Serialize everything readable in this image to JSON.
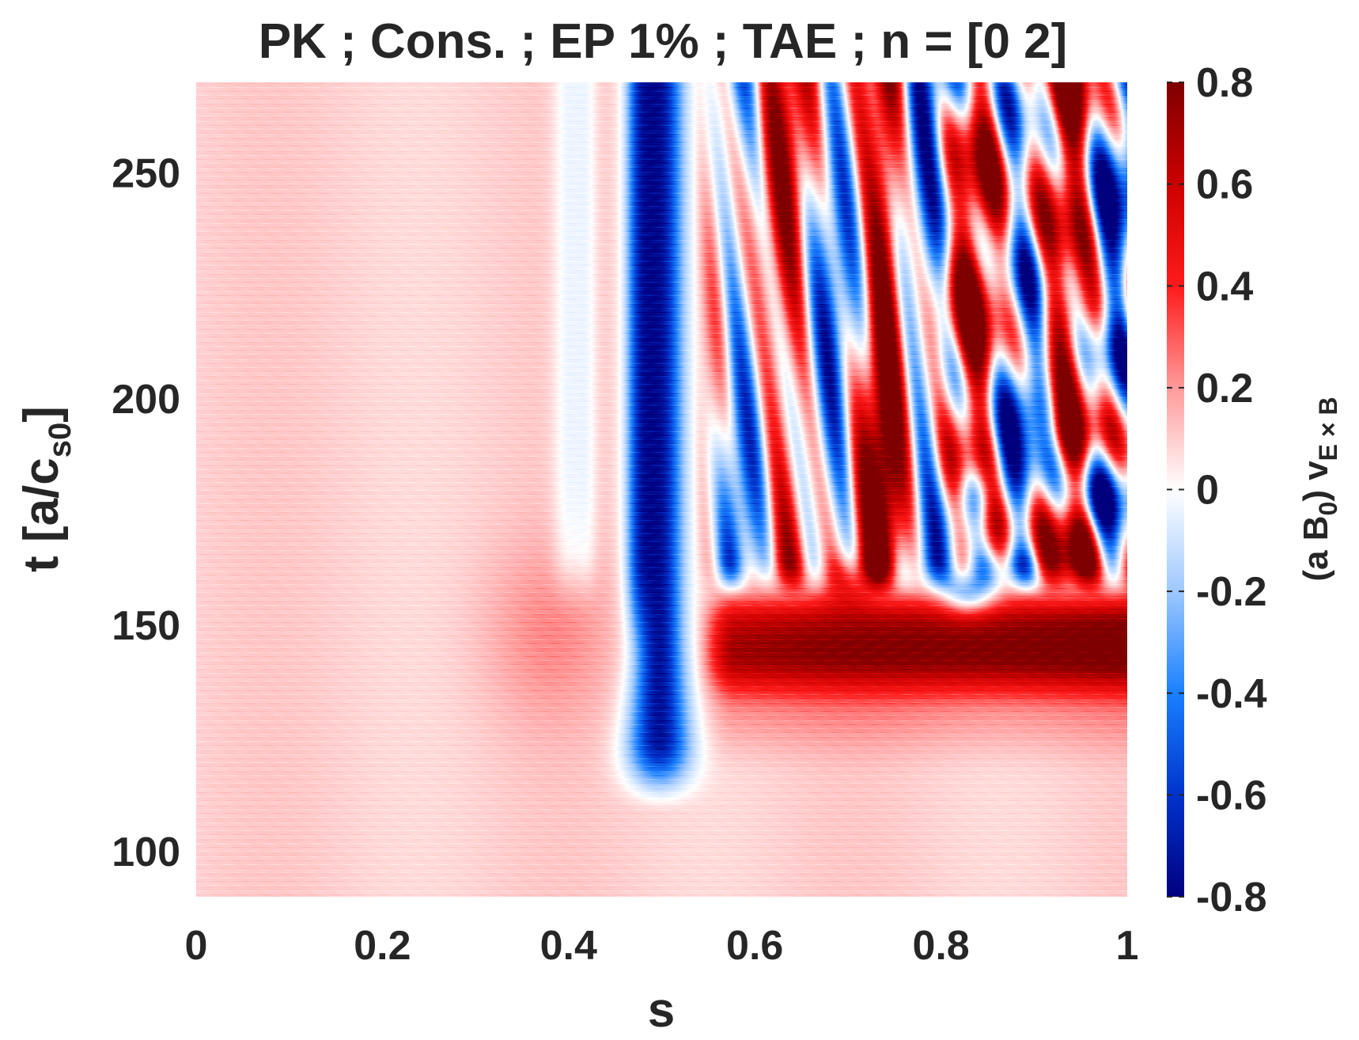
{
  "chart_data": {
    "type": "heatmap",
    "title": "PK ; Cons. ; EP 1% ; TAE ; n = [0 2]",
    "xlabel": "s",
    "ylabel": {
      "main": "t [a/c",
      "sub": "s0",
      "close": "]"
    },
    "colorbar_label": {
      "pre": "(a B",
      "sub1": "0",
      "mid": ") v",
      "sub2": "E × B"
    },
    "xlim": [
      0,
      1
    ],
    "ylim": [
      90,
      270
    ],
    "clim": [
      -0.8,
      0.8
    ],
    "x_ticks": [
      0,
      0.2,
      0.4,
      0.6,
      0.8,
      1
    ],
    "x_tick_labels": [
      "0",
      "0.2",
      "0.4",
      "0.6",
      "0.8",
      "1"
    ],
    "y_ticks": [
      100,
      150,
      200,
      250
    ],
    "y_tick_labels": [
      "100",
      "150",
      "200",
      "250"
    ],
    "colorbar_ticks": [
      -0.8,
      -0.6,
      -0.4,
      -0.2,
      0,
      0.2,
      0.4,
      0.6,
      0.8
    ],
    "colorbar_tick_labels": [
      "-0.8",
      "-0.6",
      "-0.4",
      "-0.2",
      "0",
      "0.2",
      "0.4",
      "0.6",
      "0.8"
    ],
    "colormap": {
      "name": "blue-white-red diverging",
      "stops": [
        {
          "value": -0.8,
          "color": "#00007f"
        },
        {
          "value": -0.6,
          "color": "#0033cc"
        },
        {
          "value": -0.4,
          "color": "#1a80ff"
        },
        {
          "value": -0.2,
          "color": "#9ec8ff"
        },
        {
          "value": 0.0,
          "color": "#ffffff"
        },
        {
          "value": 0.2,
          "color": "#ff9a9a"
        },
        {
          "value": 0.4,
          "color": "#ff1a1a"
        },
        {
          "value": 0.6,
          "color": "#cc0000"
        },
        {
          "value": 0.8,
          "color": "#7f0000"
        }
      ]
    },
    "grid": false,
    "field_features": [
      {
        "description": "weak uniform positive background",
        "s_range": [
          0,
          0.45
        ],
        "t_range": [
          90,
          270
        ],
        "value": 0.1
      },
      {
        "description": "positive bump near s=0.38 around t=145",
        "s_range": [
          0.3,
          0.45
        ],
        "t_range": [
          135,
          160
        ],
        "value": 0.2
      },
      {
        "description": "strong negative band near s=0.5",
        "s_range": [
          0.47,
          0.53
        ],
        "t_range": [
          110,
          270
        ],
        "value": -0.75
      },
      {
        "description": "positive region after t=145 for s>0.55",
        "s_range": [
          0.55,
          1.0
        ],
        "t_range": [
          140,
          155
        ],
        "value": 0.6
      },
      {
        "description": "mixed alternating structure at large s",
        "s_range": [
          0.6,
          1.0
        ],
        "t_range": [
          155,
          270
        ],
        "value": 0.5
      }
    ]
  }
}
